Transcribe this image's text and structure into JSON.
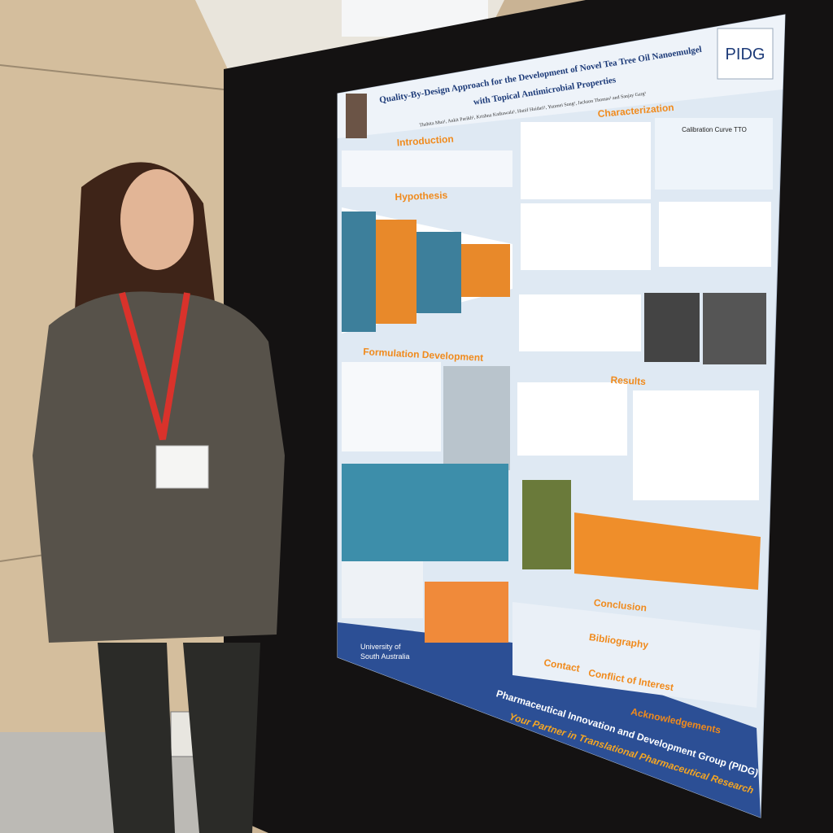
{
  "poster": {
    "title": [
      "Quality-By-Design Approach for the Development of Novel Tea Tree Oil Nanoemulgel",
      "with Topical Antimicrobial Properties"
    ],
    "authors": "Thahita Mua¹, Ankit Parikh¹, Krishna Kathawala¹, Hanif Haidari¹, Yunmei Song¹, Jackson Thomas² and Sanjay Garg¹",
    "logo": "PIDG",
    "sections": [
      "Introduction",
      "Hypothesis",
      "Characterization",
      "Formulation Development",
      "Results",
      "Conclusion",
      "Bibliography",
      "Contact",
      "Conflict of Interest",
      "Acknowledgements"
    ],
    "chart_title": "Calibration Curve TTO",
    "university": [
      "University of",
      "South Australia"
    ],
    "footer": {
      "name": "Pharmaceutical Innovation and Development Group (PIDG)",
      "tagline": "Your Partner in Translational Pharmaceutical Research"
    }
  }
}
